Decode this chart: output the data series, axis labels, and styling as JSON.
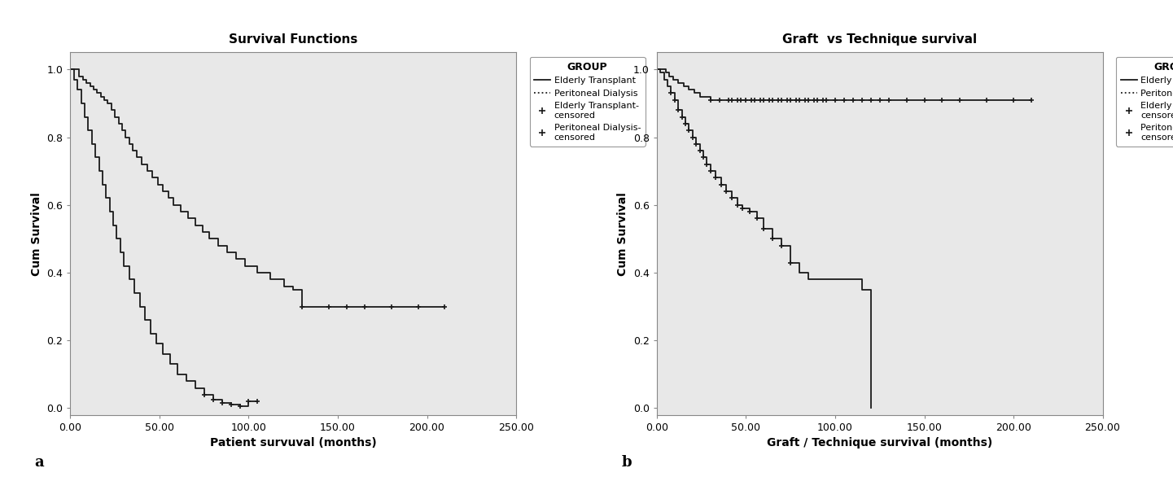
{
  "panel_a": {
    "title": "Survival Functions",
    "xlabel": "Patient survuval (months)",
    "ylabel": "Cum Survival",
    "xlim": [
      0,
      250
    ],
    "ylim": [
      -0.02,
      1.05
    ],
    "xticks": [
      0,
      50,
      100,
      150,
      200,
      250
    ],
    "xtick_labels": [
      "0.00",
      "50.00",
      "100.00",
      "150.00",
      "200.00",
      "250.00"
    ],
    "yticks": [
      0.0,
      0.2,
      0.4,
      0.6,
      0.8,
      1.0
    ],
    "ytick_labels": [
      "0.0",
      "0.2",
      "0.4",
      "0.6",
      "0.8",
      "1.0"
    ],
    "transplant_x": [
      0,
      3,
      5,
      7,
      9,
      11,
      13,
      15,
      17,
      19,
      21,
      23,
      25,
      27,
      29,
      31,
      33,
      35,
      37,
      40,
      43,
      46,
      49,
      52,
      55,
      58,
      62,
      66,
      70,
      74,
      78,
      83,
      88,
      93,
      98,
      105,
      112,
      120,
      125,
      130,
      135,
      145,
      155,
      165,
      180,
      195,
      210
    ],
    "transplant_y": [
      1.0,
      1.0,
      0.98,
      0.97,
      0.96,
      0.95,
      0.94,
      0.93,
      0.92,
      0.91,
      0.9,
      0.88,
      0.86,
      0.84,
      0.82,
      0.8,
      0.78,
      0.76,
      0.74,
      0.72,
      0.7,
      0.68,
      0.66,
      0.64,
      0.62,
      0.6,
      0.58,
      0.56,
      0.54,
      0.52,
      0.5,
      0.48,
      0.46,
      0.44,
      0.42,
      0.4,
      0.38,
      0.36,
      0.35,
      0.3,
      0.3,
      0.3,
      0.3,
      0.3,
      0.3,
      0.3,
      0.3
    ],
    "transplant_censor_x": [
      130,
      145,
      155,
      165,
      180,
      195,
      210
    ],
    "transplant_censor_y": [
      0.3,
      0.3,
      0.3,
      0.3,
      0.3,
      0.3,
      0.3
    ],
    "dialysis_x": [
      0,
      2,
      4,
      6,
      8,
      10,
      12,
      14,
      16,
      18,
      20,
      22,
      24,
      26,
      28,
      30,
      33,
      36,
      39,
      42,
      45,
      48,
      52,
      56,
      60,
      65,
      70,
      75,
      80,
      85,
      90,
      95,
      100,
      105
    ],
    "dialysis_y": [
      1.0,
      0.97,
      0.94,
      0.9,
      0.86,
      0.82,
      0.78,
      0.74,
      0.7,
      0.66,
      0.62,
      0.58,
      0.54,
      0.5,
      0.46,
      0.42,
      0.38,
      0.34,
      0.3,
      0.26,
      0.22,
      0.19,
      0.16,
      0.13,
      0.1,
      0.08,
      0.06,
      0.04,
      0.025,
      0.015,
      0.01,
      0.005,
      0.02,
      0.02
    ],
    "dialysis_censor_x": [
      75,
      80,
      85,
      90,
      95,
      100,
      105
    ],
    "dialysis_censor_y": [
      0.04,
      0.025,
      0.015,
      0.01,
      0.005,
      0.02,
      0.02
    ],
    "legend_title": "GROUP",
    "legend_entries": [
      "Elderly Transplant",
      "Peritoneal Dialysis",
      "Elderly Transplant-\ncensored",
      "Peritoneal Dialysis-\ncensored"
    ]
  },
  "panel_b": {
    "title": "Graft  vs Technique survival",
    "xlabel": "Graft / Technique survival (months)",
    "ylabel": "Cum Survival",
    "xlim": [
      0,
      250
    ],
    "ylim": [
      -0.02,
      1.05
    ],
    "xticks": [
      0,
      50,
      100,
      150,
      200,
      250
    ],
    "xtick_labels": [
      "0.00",
      "50.00",
      "100.00",
      "150.00",
      "200.00",
      "250.00"
    ],
    "yticks": [
      0.0,
      0.2,
      0.4,
      0.6,
      0.8,
      1.0
    ],
    "ytick_labels": [
      "0.0",
      "0.2",
      "0.4",
      "0.6",
      "0.8",
      "1.0"
    ],
    "transplant_x": [
      0,
      3,
      5,
      7,
      9,
      12,
      15,
      18,
      21,
      24,
      27,
      30,
      35,
      40,
      45,
      50,
      55,
      60,
      65,
      70,
      75,
      80,
      85,
      90,
      95,
      100,
      110,
      120,
      130,
      140,
      150,
      160,
      170,
      180,
      190,
      200,
      210
    ],
    "transplant_y": [
      1.0,
      1.0,
      0.99,
      0.98,
      0.97,
      0.96,
      0.95,
      0.94,
      0.93,
      0.92,
      0.92,
      0.91,
      0.91,
      0.91,
      0.91,
      0.91,
      0.91,
      0.91,
      0.91,
      0.91,
      0.91,
      0.91,
      0.91,
      0.91,
      0.91,
      0.91,
      0.91,
      0.91,
      0.91,
      0.91,
      0.91,
      0.91,
      0.91,
      0.91,
      0.91,
      0.91,
      0.91
    ],
    "transplant_censor_x": [
      30,
      35,
      40,
      42,
      45,
      47,
      50,
      53,
      55,
      58,
      60,
      63,
      65,
      68,
      70,
      73,
      75,
      78,
      80,
      83,
      85,
      88,
      90,
      93,
      95,
      100,
      105,
      110,
      115,
      120,
      125,
      130,
      140,
      150,
      160,
      170,
      185,
      200,
      210
    ],
    "transplant_censor_y": [
      0.91,
      0.91,
      0.91,
      0.91,
      0.91,
      0.91,
      0.91,
      0.91,
      0.91,
      0.91,
      0.91,
      0.91,
      0.91,
      0.91,
      0.91,
      0.91,
      0.91,
      0.91,
      0.91,
      0.91,
      0.91,
      0.91,
      0.91,
      0.91,
      0.91,
      0.91,
      0.91,
      0.91,
      0.91,
      0.91,
      0.91,
      0.91,
      0.91,
      0.91,
      0.91,
      0.91,
      0.91,
      0.91,
      0.91
    ],
    "dialysis_x": [
      0,
      2,
      4,
      6,
      8,
      10,
      12,
      14,
      16,
      18,
      20,
      22,
      24,
      26,
      28,
      30,
      33,
      36,
      39,
      42,
      45,
      48,
      52,
      56,
      60,
      65,
      70,
      75,
      80,
      85,
      88,
      92,
      95,
      100,
      108,
      115,
      120
    ],
    "dialysis_y": [
      1.0,
      0.99,
      0.97,
      0.95,
      0.93,
      0.91,
      0.88,
      0.86,
      0.84,
      0.82,
      0.8,
      0.78,
      0.76,
      0.74,
      0.72,
      0.7,
      0.68,
      0.66,
      0.64,
      0.62,
      0.6,
      0.59,
      0.58,
      0.56,
      0.53,
      0.5,
      0.48,
      0.43,
      0.4,
      0.38,
      0.38,
      0.38,
      0.38,
      0.38,
      0.38,
      0.35,
      0.0
    ],
    "dialysis_censor_x": [
      8,
      10,
      12,
      14,
      16,
      18,
      20,
      22,
      24,
      26,
      28,
      30,
      33,
      36,
      39,
      42,
      45,
      48,
      52,
      56,
      60,
      65,
      70,
      75
    ],
    "dialysis_censor_y": [
      0.93,
      0.91,
      0.88,
      0.86,
      0.84,
      0.82,
      0.8,
      0.78,
      0.76,
      0.74,
      0.72,
      0.7,
      0.68,
      0.66,
      0.64,
      0.62,
      0.6,
      0.59,
      0.58,
      0.56,
      0.53,
      0.5,
      0.48,
      0.43
    ],
    "legend_title": "GROUP",
    "legend_entries": [
      "Elderly Transplant",
      "Peritoneal Dialysis",
      "Elderly Transplant-\ncensored",
      "Peritoneal Dialysis-\ncensored"
    ]
  },
  "bg_color": "#e8e8e8",
  "fig_bg_color": "#ffffff",
  "line_color": "#1a1a1a",
  "font_size": 9,
  "title_font_size": 11,
  "label_font_size": 10
}
